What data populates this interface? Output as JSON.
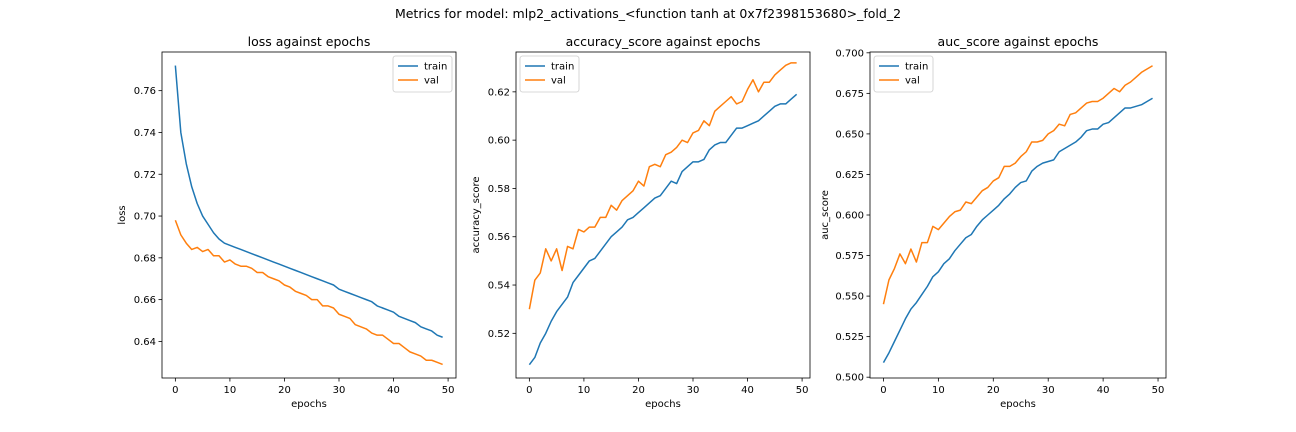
{
  "figure": {
    "suptitle": "Metrics for model: mlp2_activations_<function tanh at 0x7f2398153680>_fold_2"
  },
  "colors": {
    "train": "#1f77b4",
    "val": "#ff7f0e"
  },
  "chart_data": [
    {
      "type": "line",
      "title": "loss against epochs",
      "xlabel": "epochs",
      "ylabel": "loss",
      "xlim": [
        -2.45,
        51.45
      ],
      "ylim": [
        0.6225,
        0.7785
      ],
      "xticks": [
        0,
        10,
        20,
        30,
        40,
        50
      ],
      "xtick_labels": [
        "0",
        "10",
        "20",
        "30",
        "40",
        "50"
      ],
      "yticks": [
        0.64,
        0.66,
        0.68,
        0.7,
        0.72,
        0.74,
        0.76
      ],
      "ytick_labels": [
        "0.64",
        "0.66",
        "0.68",
        "0.70",
        "0.72",
        "0.74",
        "0.76"
      ],
      "legend": "top-right",
      "grid": false,
      "x": [
        0,
        1,
        2,
        3,
        4,
        5,
        6,
        7,
        8,
        9,
        10,
        11,
        12,
        13,
        14,
        15,
        16,
        17,
        18,
        19,
        20,
        21,
        22,
        23,
        24,
        25,
        26,
        27,
        28,
        29,
        30,
        31,
        32,
        33,
        34,
        35,
        36,
        37,
        38,
        39,
        40,
        41,
        42,
        43,
        44,
        45,
        46,
        47,
        48,
        49
      ],
      "series": [
        {
          "name": "train",
          "values": [
            0.772,
            0.74,
            0.725,
            0.714,
            0.706,
            0.7,
            0.696,
            0.692,
            0.689,
            0.687,
            0.686,
            0.685,
            0.684,
            0.683,
            0.682,
            0.681,
            0.68,
            0.679,
            0.678,
            0.677,
            0.676,
            0.675,
            0.674,
            0.673,
            0.672,
            0.671,
            0.67,
            0.669,
            0.668,
            0.667,
            0.665,
            0.664,
            0.663,
            0.662,
            0.661,
            0.66,
            0.659,
            0.657,
            0.656,
            0.655,
            0.654,
            0.652,
            0.651,
            0.65,
            0.649,
            0.647,
            0.646,
            0.645,
            0.643,
            0.642
          ]
        },
        {
          "name": "val",
          "values": [
            0.698,
            0.691,
            0.687,
            0.684,
            0.685,
            0.683,
            0.684,
            0.681,
            0.681,
            0.678,
            0.679,
            0.677,
            0.676,
            0.676,
            0.675,
            0.673,
            0.673,
            0.671,
            0.67,
            0.669,
            0.667,
            0.666,
            0.664,
            0.663,
            0.662,
            0.66,
            0.66,
            0.657,
            0.657,
            0.656,
            0.653,
            0.652,
            0.651,
            0.648,
            0.647,
            0.646,
            0.644,
            0.643,
            0.643,
            0.641,
            0.639,
            0.639,
            0.637,
            0.635,
            0.634,
            0.633,
            0.631,
            0.631,
            0.63,
            0.629
          ]
        }
      ]
    },
    {
      "type": "line",
      "title": "accuracy_score against epochs",
      "xlabel": "epochs",
      "ylabel": "accuracy_score",
      "xlim": [
        -2.45,
        51.45
      ],
      "ylim": [
        0.5015,
        0.6365
      ],
      "xticks": [
        0,
        10,
        20,
        30,
        40,
        50
      ],
      "xtick_labels": [
        "0",
        "10",
        "20",
        "30",
        "40",
        "50"
      ],
      "yticks": [
        0.52,
        0.54,
        0.56,
        0.58,
        0.6,
        0.62
      ],
      "ytick_labels": [
        "0.52",
        "0.54",
        "0.56",
        "0.58",
        "0.60",
        "0.62"
      ],
      "legend": "top-left",
      "grid": false,
      "x": [
        0,
        1,
        2,
        3,
        4,
        5,
        6,
        7,
        8,
        9,
        10,
        11,
        12,
        13,
        14,
        15,
        16,
        17,
        18,
        19,
        20,
        21,
        22,
        23,
        24,
        25,
        26,
        27,
        28,
        29,
        30,
        31,
        32,
        33,
        34,
        35,
        36,
        37,
        38,
        39,
        40,
        41,
        42,
        43,
        44,
        45,
        46,
        47,
        48,
        49
      ],
      "series": [
        {
          "name": "train",
          "values": [
            0.507,
            0.51,
            0.516,
            0.52,
            0.525,
            0.529,
            0.532,
            0.535,
            0.541,
            0.544,
            0.547,
            0.55,
            0.551,
            0.554,
            0.557,
            0.56,
            0.562,
            0.564,
            0.567,
            0.568,
            0.57,
            0.572,
            0.574,
            0.576,
            0.577,
            0.58,
            0.583,
            0.582,
            0.587,
            0.589,
            0.591,
            0.591,
            0.592,
            0.596,
            0.598,
            0.599,
            0.599,
            0.602,
            0.605,
            0.605,
            0.606,
            0.607,
            0.608,
            0.61,
            0.612,
            0.614,
            0.615,
            0.615,
            0.617,
            0.619
          ]
        },
        {
          "name": "val",
          "values": [
            0.53,
            0.542,
            0.545,
            0.555,
            0.55,
            0.555,
            0.546,
            0.556,
            0.555,
            0.563,
            0.562,
            0.564,
            0.564,
            0.568,
            0.568,
            0.573,
            0.571,
            0.575,
            0.577,
            0.579,
            0.583,
            0.581,
            0.589,
            0.59,
            0.589,
            0.594,
            0.595,
            0.597,
            0.6,
            0.599,
            0.603,
            0.604,
            0.608,
            0.606,
            0.612,
            0.614,
            0.616,
            0.618,
            0.615,
            0.616,
            0.621,
            0.625,
            0.62,
            0.624,
            0.624,
            0.627,
            0.629,
            0.631,
            0.632,
            0.632
          ]
        }
      ]
    },
    {
      "type": "line",
      "title": "auc_score against epochs",
      "xlabel": "epochs",
      "ylabel": "auc_score",
      "xlim": [
        -2.45,
        51.45
      ],
      "ylim": [
        0.4995,
        0.7005
      ],
      "xticks": [
        0,
        10,
        20,
        30,
        40,
        50
      ],
      "xtick_labels": [
        "0",
        "10",
        "20",
        "30",
        "40",
        "50"
      ],
      "yticks": [
        0.5,
        0.525,
        0.55,
        0.575,
        0.6,
        0.625,
        0.65,
        0.675,
        0.7
      ],
      "ytick_labels": [
        "0.500",
        "0.525",
        "0.550",
        "0.575",
        "0.600",
        "0.625",
        "0.650",
        "0.675",
        "0.700"
      ],
      "legend": "top-left",
      "grid": false,
      "x": [
        0,
        1,
        2,
        3,
        4,
        5,
        6,
        7,
        8,
        9,
        10,
        11,
        12,
        13,
        14,
        15,
        16,
        17,
        18,
        19,
        20,
        21,
        22,
        23,
        24,
        25,
        26,
        27,
        28,
        29,
        30,
        31,
        32,
        33,
        34,
        35,
        36,
        37,
        38,
        39,
        40,
        41,
        42,
        43,
        44,
        45,
        46,
        47,
        48,
        49
      ],
      "series": [
        {
          "name": "train",
          "values": [
            0.509,
            0.515,
            0.522,
            0.529,
            0.536,
            0.542,
            0.546,
            0.551,
            0.556,
            0.562,
            0.565,
            0.57,
            0.573,
            0.578,
            0.582,
            0.586,
            0.588,
            0.593,
            0.597,
            0.6,
            0.603,
            0.606,
            0.61,
            0.613,
            0.617,
            0.62,
            0.621,
            0.627,
            0.63,
            0.632,
            0.633,
            0.634,
            0.639,
            0.641,
            0.643,
            0.645,
            0.648,
            0.652,
            0.653,
            0.653,
            0.656,
            0.657,
            0.66,
            0.663,
            0.666,
            0.666,
            0.667,
            0.668,
            0.67,
            0.672
          ]
        },
        {
          "name": "val",
          "values": [
            0.545,
            0.56,
            0.567,
            0.576,
            0.57,
            0.579,
            0.571,
            0.583,
            0.583,
            0.593,
            0.591,
            0.595,
            0.599,
            0.602,
            0.603,
            0.608,
            0.607,
            0.611,
            0.615,
            0.617,
            0.621,
            0.623,
            0.63,
            0.63,
            0.632,
            0.636,
            0.639,
            0.645,
            0.645,
            0.646,
            0.65,
            0.652,
            0.656,
            0.655,
            0.662,
            0.663,
            0.666,
            0.669,
            0.67,
            0.67,
            0.672,
            0.675,
            0.678,
            0.676,
            0.68,
            0.682,
            0.685,
            0.688,
            0.69,
            0.692
          ]
        }
      ]
    }
  ]
}
